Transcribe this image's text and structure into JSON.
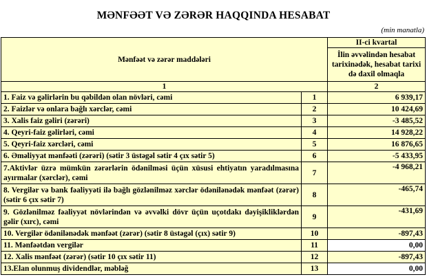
{
  "title": "MƏNFƏƏT VƏ ZƏRƏR HAQQINDA HESABAT",
  "units": "(min manatla)",
  "header": {
    "col_items": "Mənfəət və zərər maddələri",
    "period": "II-ci kvartal",
    "period_desc": "İlin əvvəlindən hesabat tarixinədək, hesabat tarixi də daxil olmaqla",
    "col_num_1": "1",
    "col_num_2": "2"
  },
  "rows": [
    {
      "label": "1. Faiz və gəlirlərin bu qəbildən olan növləri, cəmi",
      "line": "1",
      "value": "6 939,17"
    },
    {
      "label": "2. Faizlər və onlara bağlı xərclər, cəmi",
      "line": "2",
      "value": "10 424,69"
    },
    {
      "label": "3. Xalis faiz gəliri (zərəri)",
      "line": "3",
      "value": "-3 485,52"
    },
    {
      "label": "4. Qeyri-faiz gəlirləri, cəmi",
      "line": "4",
      "value": "14 928,22"
    },
    {
      "label": "5. Qeyri-faiz xərcləri, cəmi",
      "line": "5",
      "value": "16 876,65"
    },
    {
      "label": "6. Əməliyyat mənfəəti (zərəri) (sətir 3 üstəgəl sətir 4 çıx sətir 5)",
      "line": "6",
      "value": "-5 433,95"
    },
    {
      "label": "7.Aktivlər üzrə mümkün zərərlərin ödənilməsi üçün xüsusi ehtiyatın yaradılmasına ayırmalar (xərclər), cəmi",
      "line": "7",
      "value": "-4 968,21"
    },
    {
      "label": "8. Vergilər və bank fəaliyyəti ilə bağlı gözlənilməz xərclər ödənilənədək mənfəət (zərər) (sətir 6 çıx sətir 7)",
      "line": "8",
      "value": "-465,74"
    },
    {
      "label": "9. Gözlənilməz fəaliyyət növlərindən və əvvəlki dövr üçün uçotdakı dəyişikliklərdən gəlir (xırc), cəmi",
      "line": "9",
      "value": "-431,69"
    },
    {
      "label": "10. Vergilər ödənilənədək mənfəət (zərər) (sətir 8 üstəgəl (çıx) sətir 9)",
      "line": "10",
      "value": "-897,43"
    },
    {
      "label": "11. Mənfəətdən vergilər",
      "line": "11",
      "value": "0,00"
    },
    {
      "label": "12. Xalis mənfəət (zərər) (sətir 10 çıx sətir 11)",
      "line": "12",
      "value": "-897,43"
    },
    {
      "label": "13.Elan olunmuş dividendlər, məbləğ",
      "line": "13",
      "value": "0,00"
    }
  ]
}
